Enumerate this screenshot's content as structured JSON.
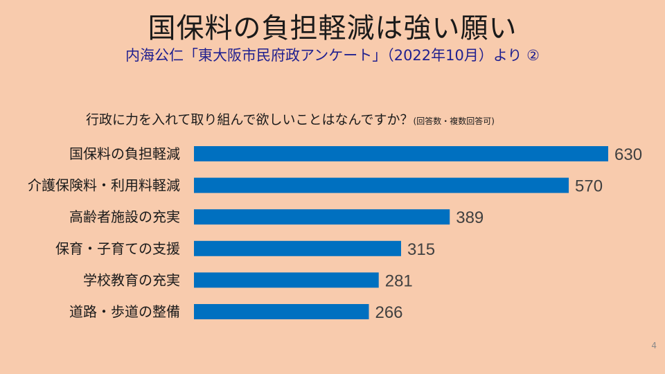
{
  "title": "国保料の負担軽減は強い願い",
  "subtitle": "内海公仁「東大阪市民府政アンケート」（2022年10月）より ②",
  "page_number": "4",
  "colors": {
    "background": "#f8cbad",
    "bar": "#0070c0",
    "subtitle": "#1f1f8f"
  },
  "chart_data": {
    "type": "bar",
    "orientation": "horizontal",
    "title": "行政に力を入れて取り組んで欲しいことはなんですか？",
    "title_note": "(回答数・複数回答可)",
    "categories": [
      "国保料の負担軽減",
      "介護保険料・利用料軽減",
      "高齢者施設の充実",
      "保育・子育ての支援",
      "学校教育の充実",
      "道路・歩道の整備"
    ],
    "values": [
      630,
      570,
      389,
      315,
      281,
      266
    ],
    "xlim": [
      0,
      630
    ],
    "grid": false,
    "legend": "none",
    "data_labels": true
  }
}
